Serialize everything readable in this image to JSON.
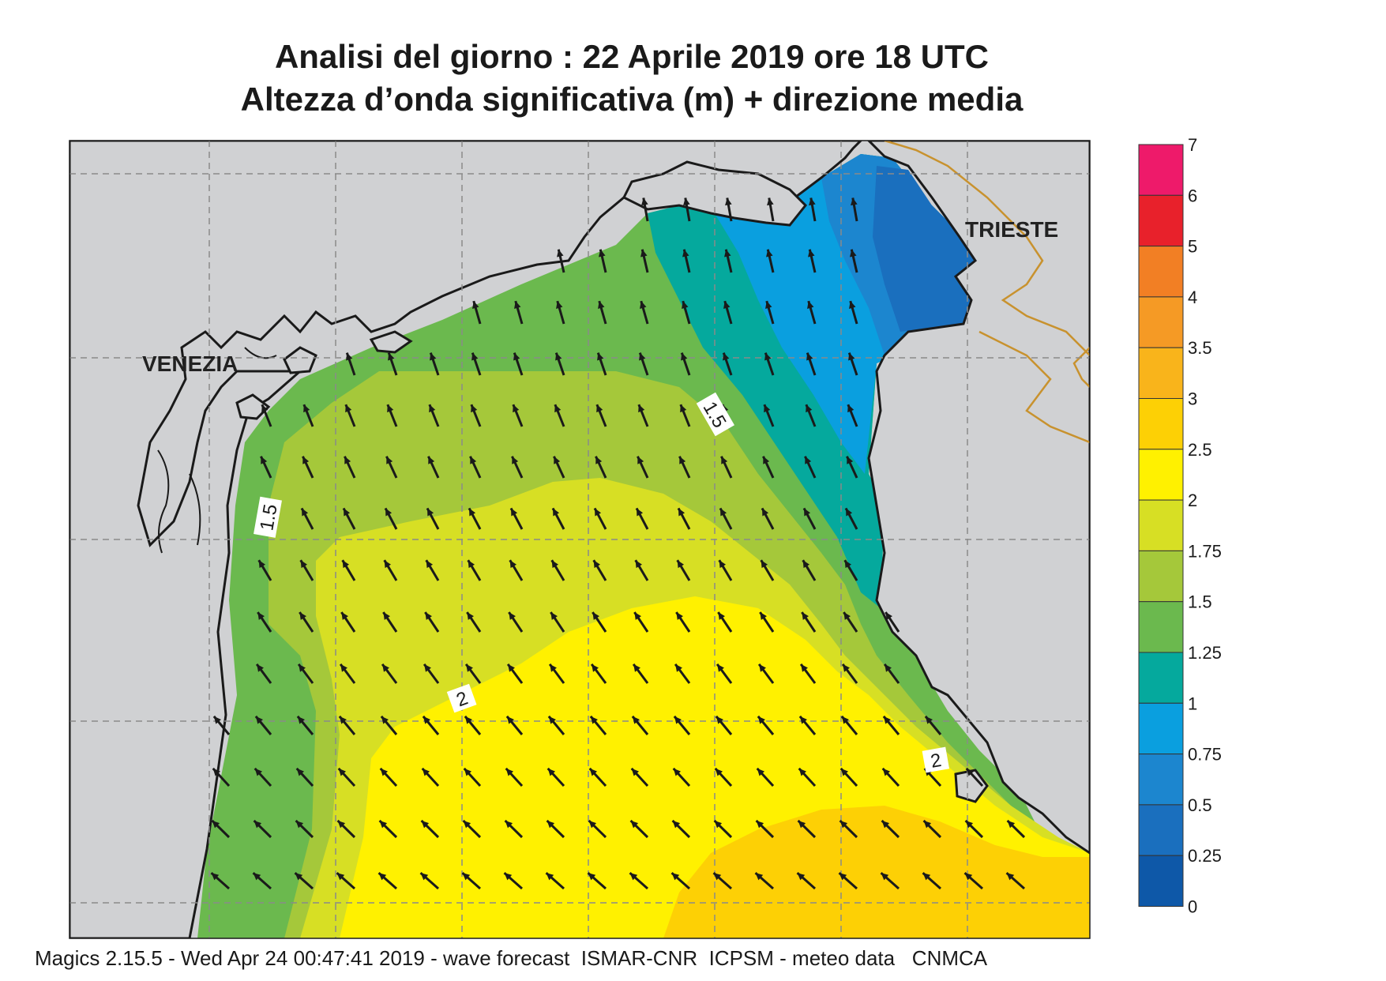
{
  "title": {
    "line1": "Analisi del giorno :  22   Aprile  2019   ore 18 UTC",
    "line2": "Altezza d’onda significativa (m) + direzione media"
  },
  "footer": "Magics 2.15.5 - Wed Apr 24 00:47:41 2019 - wave forecast  ISMAR-CNR  ICPSM - meteo data   CNMCA",
  "places": {
    "venezia": "VENEZIA",
    "trieste": "TRIESTE"
  },
  "contour_labels": {
    "west": "1.5",
    "north": "1.5",
    "south": "2",
    "east": "2"
  },
  "legend": {
    "ticks": [
      "7",
      "6",
      "5",
      "4",
      "3.5",
      "3",
      "2.5",
      "2",
      "1.75",
      "1.5",
      "1.25",
      "1",
      "0.75",
      "0.5",
      "0.25",
      "0"
    ],
    "colors": [
      "#ee1a6a",
      "#e8212b",
      "#f27f24",
      "#f59a25",
      "#f9b41b",
      "#fdd005",
      "#fff100",
      "#d7df24",
      "#a5c83a",
      "#6bb94e",
      "#05a99d",
      "#0a9fdf",
      "#1c86cf",
      "#1a6fbe",
      "#0e58a8"
    ]
  },
  "colors": {
    "land": "#d0d1d3",
    "coast": "#1a1a1a",
    "border": "#c8922e",
    "arrow": "#1a1a1a",
    "grid": "#8a8a8a"
  },
  "wave_direction": "NW"
}
